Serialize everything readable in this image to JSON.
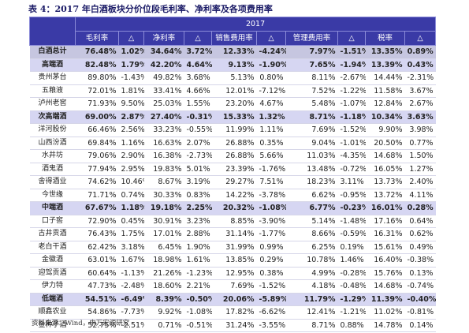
{
  "title": "表 4：2017 年白酒板块分价位段毛利率、净利率及各项费用率",
  "table": {
    "year": "2017",
    "headers": [
      "毛利率",
      "△",
      "净利率",
      "△",
      "销售费用率",
      "△",
      "管理费用率",
      "△",
      "税率",
      "△"
    ],
    "rows": [
      {
        "name": "白酒总计",
        "values": [
          "76.48%",
          "1.02%",
          "34.64%",
          "3.72%",
          "12.33%",
          "-4.24%",
          "7.97%",
          "-1.51%",
          "13.35%",
          "0.89%"
        ]
      },
      {
        "name": "高端酒",
        "values": [
          "82.48%",
          "1.79%",
          "42.20%",
          "4.64%",
          "9.13%",
          "-1.90%",
          "7.65%",
          "-1.94%",
          "13.39%",
          "0.43%"
        ]
      },
      {
        "name": "贵州茅台",
        "values": [
          "89.80%",
          "-1.43%",
          "49.82%",
          "3.68%",
          "5.13%",
          "0.80%",
          "8.11%",
          "-2.67%",
          "14.44%",
          "-2.31%"
        ]
      },
      {
        "name": "五粮液",
        "values": [
          "72.01%",
          "1.81%",
          "33.41%",
          "4.66%",
          "12.01%",
          "-7.12%",
          "7.52%",
          "-1.22%",
          "11.58%",
          "3.67%"
        ]
      },
      {
        "name": "泸州老窖",
        "values": [
          "71.93%",
          "9.50%",
          "25.03%",
          "1.55%",
          "23.20%",
          "4.67%",
          "5.48%",
          "-1.07%",
          "12.84%",
          "2.67%"
        ]
      },
      {
        "name": "次高端酒",
        "values": [
          "69.00%",
          "2.87%",
          "27.40%",
          "-0.31%",
          "15.33%",
          "1.32%",
          "8.71%",
          "-1.18%",
          "10.34%",
          "3.63%"
        ]
      },
      {
        "name": "洋河股份",
        "values": [
          "66.46%",
          "2.56%",
          "33.23%",
          "-0.55%",
          "11.99%",
          "1.11%",
          "7.69%",
          "-1.52%",
          "9.90%",
          "3.98%"
        ]
      },
      {
        "name": "山西汾酒",
        "values": [
          "69.84%",
          "1.16%",
          "16.63%",
          "2.07%",
          "26.88%",
          "0.35%",
          "9.04%",
          "-1.01%",
          "20.50%",
          "0.77%"
        ]
      },
      {
        "name": "水井坊",
        "values": [
          "79.06%",
          "2.90%",
          "16.38%",
          "-2.73%",
          "26.88%",
          "5.66%",
          "11.03%",
          "-4.35%",
          "14.68%",
          "1.50%"
        ]
      },
      {
        "name": "酒鬼酒",
        "values": [
          "77.94%",
          "2.95%",
          "19.83%",
          "5.01%",
          "23.39%",
          "-1.76%",
          "13.48%",
          "-0.72%",
          "16.05%",
          "1.27%"
        ]
      },
      {
        "name": "舍得酒业",
        "values": [
          "74.62%",
          "10.46%",
          "8.67%",
          "3.19%",
          "29.27%",
          "7.51%",
          "18.23%",
          "3.11%",
          "13.73%",
          "2.40%"
        ]
      },
      {
        "name": "今世缘",
        "values": [
          "71.71%",
          "0.74%",
          "30.33%",
          "0.83%",
          "14.22%",
          "-3.78%",
          "6.62%",
          "-0.95%",
          "13.72%",
          "4.11%"
        ]
      },
      {
        "name": "中端酒",
        "values": [
          "67.67%",
          "1.18%",
          "19.18%",
          "2.25%",
          "20.32%",
          "-1.08%",
          "6.77%",
          "-0.23%",
          "16.01%",
          "0.28%"
        ]
      },
      {
        "name": "口子窖",
        "values": [
          "72.90%",
          "0.45%",
          "30.91%",
          "3.23%",
          "8.85%",
          "-3.90%",
          "5.14%",
          "-1.48%",
          "17.16%",
          "0.64%"
        ]
      },
      {
        "name": "古井贡酒",
        "values": [
          "76.43%",
          "1.75%",
          "17.01%",
          "2.88%",
          "31.14%",
          "-1.77%",
          "8.66%",
          "-0.59%",
          "16.31%",
          "0.62%"
        ]
      },
      {
        "name": "老白干酒",
        "values": [
          "62.42%",
          "3.18%",
          "6.45%",
          "1.90%",
          "31.99%",
          "0.99%",
          "6.25%",
          "0.19%",
          "15.61%",
          "0.49%"
        ]
      },
      {
        "name": "金徽酒",
        "values": [
          "63.01%",
          "1.67%",
          "18.98%",
          "1.61%",
          "13.85%",
          "0.29%",
          "10.78%",
          "1.46%",
          "16.40%",
          "-0.38%"
        ]
      },
      {
        "name": "迎驾贡酒",
        "values": [
          "60.64%",
          "-1.13%",
          "21.26%",
          "-1.23%",
          "12.95%",
          "0.38%",
          "4.99%",
          "-0.28%",
          "15.76%",
          "0.13%"
        ]
      },
      {
        "name": "伊力特",
        "values": [
          "47.73%",
          "-2.48%",
          "18.60%",
          "2.21%",
          "7.69%",
          "-1.52%",
          "4.18%",
          "-0.48%",
          "14.68%",
          "-0.74%"
        ]
      },
      {
        "name": "低端酒",
        "values": [
          "54.51%",
          "-6.49%",
          "8.39%",
          "-0.50%",
          "20.06%",
          "-5.89%",
          "11.79%",
          "-1.29%",
          "11.39%",
          "-0.40%"
        ]
      },
      {
        "name": "顺鑫农业",
        "values": [
          "54.86%",
          "-7.73%",
          "9.92%",
          "-1.08%",
          "17.82%",
          "-6.62%",
          "12.41%",
          "-1.21%",
          "11.02%",
          "-0.81%"
        ]
      },
      {
        "name": "金种子酒",
        "values": [
          "52.75%",
          "-2.51%",
          "0.71%",
          "-0.51%",
          "31.24%",
          "-3.55%",
          "8.71%",
          "0.88%",
          "14.78%",
          "0.14%"
        ]
      }
    ]
  },
  "source": "资料来源：Wind，申万宏源研究"
}
